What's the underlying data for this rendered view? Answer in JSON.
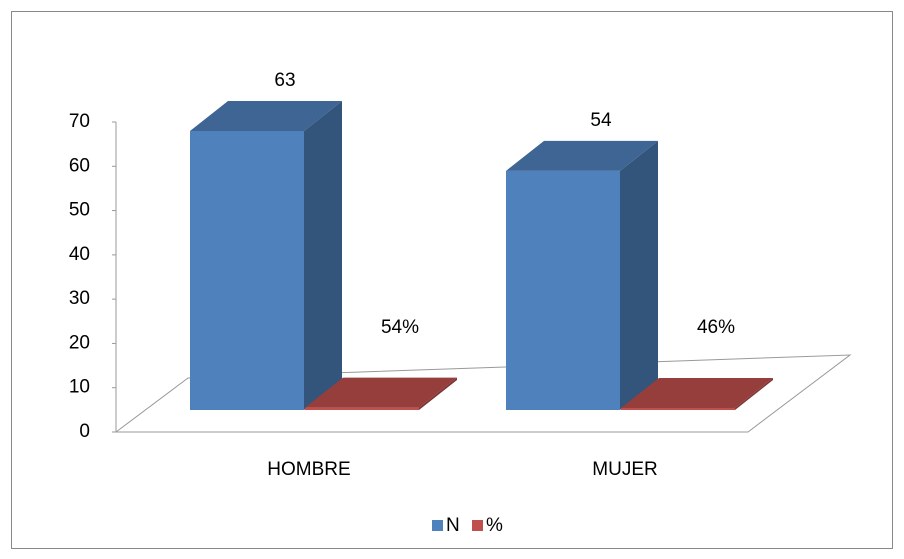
{
  "chart_data": {
    "type": "bar3d",
    "categories": [
      "HOMBRE",
      "MUJER"
    ],
    "series": [
      {
        "name": "N",
        "color": "#4f81bd",
        "values": [
          63,
          54
        ]
      },
      {
        "name": "%",
        "color": "#c0504d",
        "values": [
          0.54,
          0.46
        ],
        "value_labels": [
          "54%",
          "46%"
        ]
      }
    ],
    "ylim": [
      0,
      70
    ],
    "yticks": [
      0,
      10,
      20,
      30,
      40,
      50,
      60,
      70
    ],
    "legend": "bottom"
  }
}
